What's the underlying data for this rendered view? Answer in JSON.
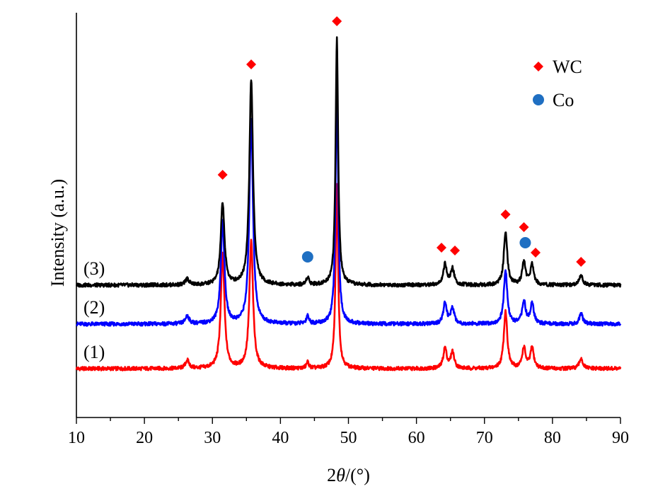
{
  "chart_data": {
    "type": "line",
    "title": "",
    "xlabel_prefix": "2",
    "xlabel_symbol": "θ",
    "xlabel_suffix": "/(°)",
    "ylabel": "Intensity (a.u.)",
    "xlim": [
      10,
      90
    ],
    "x_ticks": [
      10,
      20,
      30,
      40,
      50,
      60,
      70,
      80,
      90
    ],
    "y_ticks_shown": false,
    "grid": false,
    "legend_position": "top-right",
    "legend": [
      {
        "label": "WC",
        "marker": "diamond",
        "color": "#ff0000"
      },
      {
        "label": "Co",
        "marker": "circle",
        "color": "#1f6fc2"
      }
    ],
    "series": [
      {
        "name": "(1)",
        "color": "#ff0000",
        "baseline": 0.0,
        "peaks": [
          [
            26.3,
            0.4
          ],
          [
            31.5,
            5.6
          ],
          [
            35.7,
            6.2
          ],
          [
            44.0,
            0.3
          ],
          [
            48.3,
            9.0
          ],
          [
            64.2,
            1.0
          ],
          [
            65.3,
            0.8
          ],
          [
            73.1,
            2.8
          ],
          [
            75.8,
            1.0
          ],
          [
            77.0,
            1.0
          ],
          [
            84.2,
            0.5
          ]
        ]
      },
      {
        "name": "(2)",
        "color": "#0000ff",
        "baseline": 2.0,
        "peaks": [
          [
            26.3,
            0.4
          ],
          [
            31.5,
            5.0
          ],
          [
            35.7,
            10.0
          ],
          [
            44.0,
            0.4
          ],
          [
            48.3,
            12.0
          ],
          [
            64.2,
            1.0
          ],
          [
            65.3,
            0.8
          ],
          [
            73.1,
            2.6
          ],
          [
            75.8,
            1.1
          ],
          [
            77.0,
            1.0
          ],
          [
            84.2,
            0.5
          ]
        ]
      },
      {
        "name": "(3)",
        "color": "#000000",
        "baseline": 4.0,
        "peaks": [
          [
            26.3,
            0.3
          ],
          [
            31.5,
            4.0
          ],
          [
            35.7,
            10.0
          ],
          [
            44.0,
            0.4
          ],
          [
            48.3,
            12.0
          ],
          [
            64.2,
            1.0
          ],
          [
            65.3,
            0.8
          ],
          [
            73.1,
            2.6
          ],
          [
            75.8,
            1.1
          ],
          [
            77.0,
            1.0
          ],
          [
            84.2,
            0.5
          ]
        ]
      }
    ],
    "markers_wc_2theta": [
      31.5,
      35.7,
      48.3,
      64.0,
      65.7,
      73.1,
      75.8,
      77.4,
      84.2
    ],
    "markers_co_2theta": [
      44.0,
      76.0
    ]
  }
}
